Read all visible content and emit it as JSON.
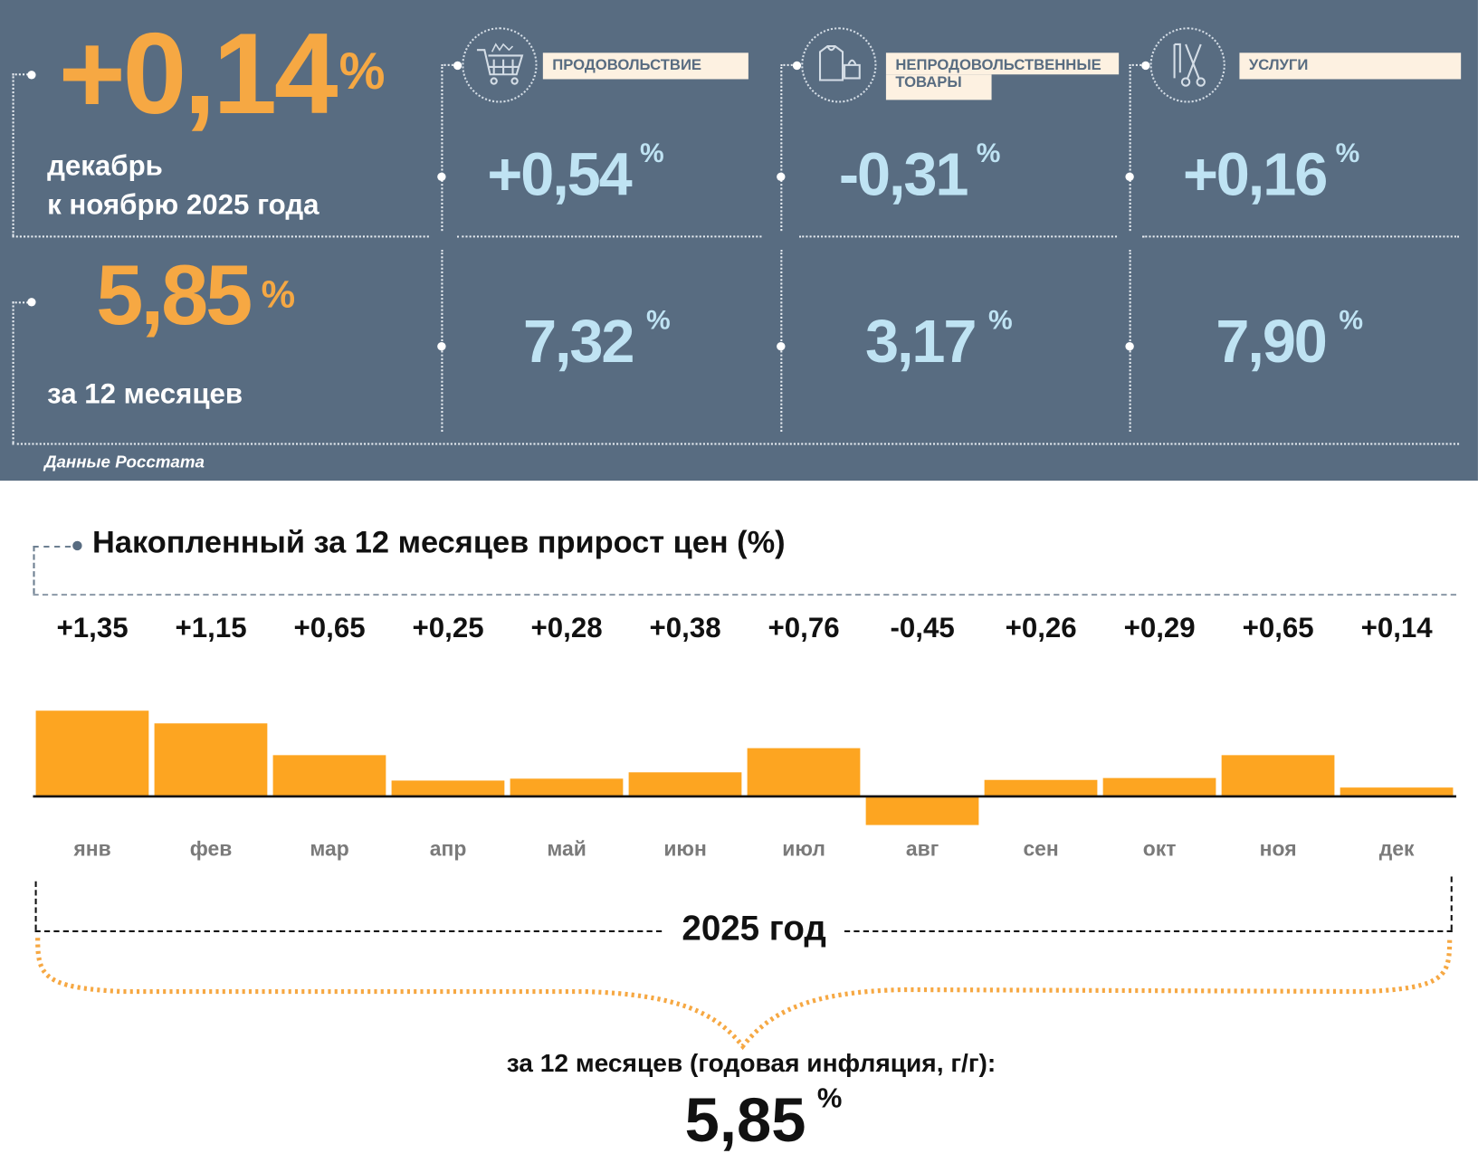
{
  "summary": {
    "month_value": "+0,14",
    "month_unit": "%",
    "month_label_1": "декабрь",
    "month_label_2": "к ноябрю 2025 года",
    "year_value": "5,85",
    "year_unit": "%",
    "year_label": "за 12 месяцев",
    "source": "Данные Росстата"
  },
  "categories": [
    {
      "label": "ПРОДОВОЛЬСТВИЕ",
      "icon": "shopping-cart-icon",
      "month": "+0,54",
      "year": "7,32",
      "unit": "%"
    },
    {
      "label_1": "НЕПРОДОВОЛЬСТВЕННЫЕ",
      "label_2": "ТОВАРЫ",
      "icon": "clothing-bag-icon",
      "month": "-0,31",
      "year": "3,17",
      "unit": "%"
    },
    {
      "label": "УСЛУГИ",
      "icon": "comb-scissors-icon",
      "month": "+0,16",
      "year": "7,90",
      "unit": "%"
    }
  ],
  "colors": {
    "panel": "#586c81",
    "accent": "#f6a843",
    "value": "#bfe3f3",
    "bar": "#fda521"
  },
  "chart_data": {
    "type": "bar",
    "title": "Накопленный за 12 месяцев прирост цен (%)",
    "categories": [
      "янв",
      "фев",
      "мар",
      "апр",
      "май",
      "июн",
      "июл",
      "авг",
      "сен",
      "окт",
      "ноя",
      "дек"
    ],
    "values": [
      1.35,
      1.15,
      0.65,
      0.25,
      0.28,
      0.38,
      0.76,
      -0.45,
      0.26,
      0.29,
      0.65,
      0.14
    ],
    "value_labels": [
      "+1,35",
      "+1,15",
      "+0,65",
      "+0,25",
      "+0,28",
      "+0,38",
      "+0,76",
      "-0,45",
      "+0,26",
      "+0,29",
      "+0,65",
      "+0,14"
    ],
    "xlabel": "2025 год",
    "ylabel": "",
    "grid": false
  },
  "footer": {
    "label": "за 12 месяцев (годовая инфляция, г/г):",
    "value": "5,85",
    "unit": "%"
  }
}
